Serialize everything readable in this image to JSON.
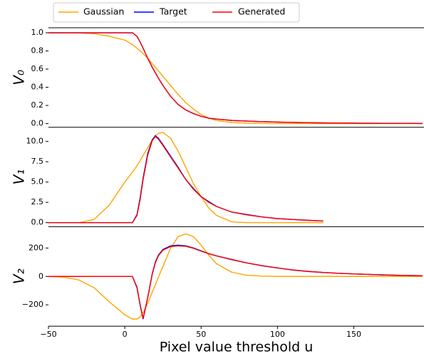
{
  "chart_data": [
    {
      "type": "line",
      "ylabel": "V₀",
      "x": [
        -50,
        -40,
        -30,
        -20,
        -10,
        0,
        5,
        8,
        10,
        12,
        15,
        18,
        20,
        22,
        25,
        30,
        35,
        40,
        45,
        50,
        55,
        60,
        70,
        80,
        90,
        100,
        110,
        120,
        130,
        140,
        150,
        160,
        170,
        180,
        190,
        195
      ],
      "xlim": [
        -50,
        196
      ],
      "ylim": [
        -0.04,
        1.055
      ],
      "yticks": [
        {
          "value": 0,
          "label": "0.0"
        },
        {
          "value": 0.2,
          "label": "0.2"
        },
        {
          "value": 0.4,
          "label": "0.4"
        },
        {
          "value": 0.6,
          "label": "0.6"
        },
        {
          "value": 0.8,
          "label": "0.8"
        },
        {
          "value": 1,
          "label": "1.0"
        }
      ],
      "series": [
        {
          "name": "Gaussian",
          "color": "#ffa500",
          "values": [
            1,
            1,
            0.998,
            0.99,
            0.96,
            0.92,
            0.87,
            0.83,
            0.8,
            0.77,
            0.72,
            0.66,
            0.62,
            0.58,
            0.52,
            0.42,
            0.32,
            0.23,
            0.16,
            0.1,
            0.06,
            0.035,
            0.012,
            0.005,
            0.002,
            0.001,
            0,
            0,
            0,
            0,
            0,
            0,
            0,
            0,
            0,
            0
          ]
        },
        {
          "name": "Target",
          "color": "#0000ff",
          "values": [
            1,
            1,
            1,
            1,
            1,
            1,
            1,
            0.96,
            0.9,
            0.83,
            0.72,
            0.62,
            0.56,
            0.5,
            0.42,
            0.3,
            0.21,
            0.15,
            0.11,
            0.08,
            0.06,
            0.05,
            0.035,
            0.028,
            0.022,
            0.017,
            0.013,
            0.01,
            0.008,
            0.006,
            0.005,
            0.004,
            0.003,
            0.002,
            0.002,
            0.001
          ]
        },
        {
          "name": "Generated",
          "color": "#ff0000",
          "values": [
            1,
            1,
            1,
            1,
            1,
            1,
            1,
            0.96,
            0.9,
            0.83,
            0.72,
            0.62,
            0.56,
            0.5,
            0.42,
            0.3,
            0.21,
            0.15,
            0.11,
            0.08,
            0.06,
            0.05,
            0.035,
            0.028,
            0.022,
            0.017,
            0.013,
            0.01,
            0.008,
            0.006,
            0.005,
            0.004,
            0.003,
            0.002,
            0.002,
            0.001
          ]
        }
      ]
    },
    {
      "type": "line",
      "ylabel": "V₁",
      "x": [
        -50,
        -40,
        -30,
        -20,
        -10,
        0,
        5,
        8,
        10,
        12,
        15,
        18,
        20,
        22,
        25,
        30,
        35,
        40,
        45,
        50,
        55,
        60,
        70,
        80,
        90,
        100,
        110,
        120,
        130,
        140,
        150,
        160,
        170,
        180,
        190,
        195
      ],
      "xlim": [
        -50,
        196
      ],
      "ylim": [
        -0.5,
        11.75
      ],
      "yticks": [
        {
          "value": 0,
          "label": "0.0"
        },
        2.5,
        {
          "value": 5,
          "label": "5.0"
        },
        7.5,
        {
          "value": 10,
          "label": "10.0"
        }
      ],
      "series": [
        {
          "name": "Gaussian",
          "color": "#ffa500",
          "values": [
            null,
            null,
            0,
            0.4,
            2.2,
            5,
            6.2,
            7,
            7.6,
            8.3,
            9.2,
            10.2,
            10.7,
            11,
            11.1,
            10.4,
            8.8,
            6.8,
            4.8,
            3.2,
            1.8,
            0.9,
            0.1,
            0,
            0,
            0,
            0,
            0,
            0,
            null,
            null,
            null,
            null,
            null,
            null,
            null
          ]
        },
        {
          "name": "Target",
          "color": "#0000ff",
          "values": [
            0,
            0,
            0,
            0,
            0,
            0,
            0,
            1,
            3,
            5.5,
            8.5,
            10.2,
            10.7,
            10.4,
            9.6,
            8.2,
            6.8,
            5.3,
            4.2,
            3.2,
            2.6,
            2,
            1.3,
            1,
            0.7,
            0.5,
            0.4,
            0.3,
            0.2,
            null,
            null,
            null,
            null,
            null,
            null,
            null
          ]
        },
        {
          "name": "Generated",
          "color": "#ff0000",
          "values": [
            0,
            0,
            0,
            0,
            0,
            0,
            0,
            0.9,
            2.8,
            5.3,
            8.3,
            10.1,
            10.6,
            10.3,
            9.5,
            8.1,
            6.7,
            5.3,
            4.1,
            3.2,
            2.5,
            2,
            1.3,
            0.95,
            0.7,
            0.5,
            0.38,
            0.28,
            0.2,
            null,
            null,
            null,
            null,
            null,
            null,
            null
          ]
        }
      ]
    },
    {
      "type": "line",
      "ylabel": "V₂",
      "xlabel": "Pixel value threshold u",
      "x": [
        -50,
        -40,
        -30,
        -20,
        -10,
        0,
        5,
        8,
        10,
        12,
        15,
        18,
        20,
        22,
        25,
        30,
        35,
        40,
        45,
        50,
        55,
        60,
        70,
        80,
        90,
        100,
        110,
        120,
        130,
        140,
        150,
        160,
        170,
        180,
        190,
        195
      ],
      "xlim": [
        -50,
        196
      ],
      "ylim": [
        -350,
        350
      ],
      "xticks": [
        {
          "value": -50,
          "label": "−50"
        },
        0,
        50,
        100,
        150
      ],
      "yticks": [
        {
          "value": -200,
          "label": "−200"
        },
        0,
        200
      ],
      "series": [
        {
          "name": "Gaussian",
          "color": "#ffa500",
          "values": [
            0,
            -5,
            -25,
            -80,
            -180,
            -270,
            -300,
            -300,
            -285,
            -255,
            -190,
            -110,
            -60,
            -5,
            70,
            200,
            280,
            300,
            280,
            220,
            150,
            90,
            30,
            8,
            2,
            0,
            0,
            0,
            0,
            0,
            0,
            0,
            0,
            0,
            0,
            0
          ]
        },
        {
          "name": "Target",
          "color": "#0000ff",
          "values": [
            0,
            0,
            0,
            0,
            0,
            0,
            0,
            -80,
            -200,
            -300,
            -150,
            20,
            100,
            150,
            190,
            215,
            220,
            215,
            200,
            180,
            160,
            145,
            120,
            95,
            75,
            60,
            45,
            35,
            28,
            22,
            18,
            14,
            10,
            8,
            6,
            5
          ]
        },
        {
          "name": "Generated",
          "color": "#ff0000",
          "values": [
            0,
            0,
            0,
            0,
            0,
            0,
            0,
            -75,
            -195,
            -295,
            -150,
            15,
            95,
            145,
            185,
            210,
            215,
            212,
            198,
            178,
            160,
            145,
            118,
            95,
            76,
            60,
            46,
            36,
            28,
            22,
            18,
            14,
            11,
            8,
            6,
            5
          ]
        }
      ]
    }
  ]
}
